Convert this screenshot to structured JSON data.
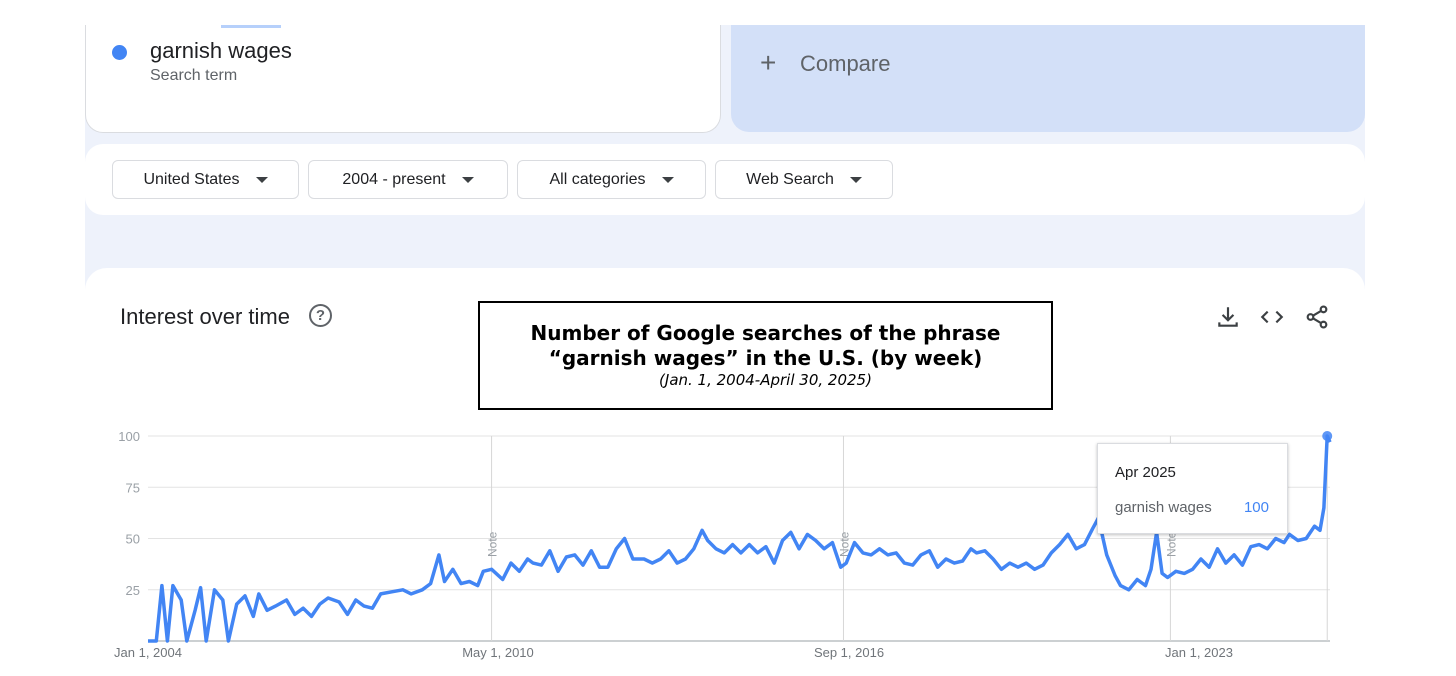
{
  "search_term": {
    "name": "garnish wages",
    "subtitle": "Search term"
  },
  "compare": {
    "plus": "+",
    "label": "Compare"
  },
  "filters": {
    "region": "United States",
    "time_range": "2004 - present",
    "category": "All categories",
    "property": "Web Search"
  },
  "chart_section": {
    "title": "Interest over time",
    "help_symbol": "?",
    "tools": [
      "download-icon",
      "embed-icon",
      "share-icon"
    ]
  },
  "annotation": {
    "title": "Number of Google searches of the phrase “garnish wages” in the U.S. (by week)",
    "subtitle": "(Jan. 1, 2004-April 30,  2025)"
  },
  "tooltip": {
    "date": "Apr 2025",
    "series": "garnish wages",
    "value": "100"
  },
  "colors": {
    "line": "#4285f4",
    "compare_bg": "#d3e0f8",
    "page_bg": "#eef2fb"
  },
  "chart_data": {
    "type": "line",
    "title": "",
    "xlabel": "",
    "ylabel": "",
    "ylim": [
      0,
      100
    ],
    "y_ticks": [
      "25",
      "50",
      "75",
      "100"
    ],
    "x_tick_labels": [
      "Jan 1, 2004",
      "May 1, 2010",
      "Sep 1, 2016",
      "Jan 1, 2023"
    ],
    "x_range": [
      2004.0,
      2025.33
    ],
    "notes": [
      {
        "x": 2010.2,
        "label": "Note"
      },
      {
        "x": 2016.55,
        "label": "Note"
      },
      {
        "x": 2022.45,
        "label": "Note"
      }
    ],
    "series": [
      {
        "name": "garnish wages",
        "points": [
          [
            2004.0,
            0
          ],
          [
            2004.15,
            0
          ],
          [
            2004.25,
            27
          ],
          [
            2004.35,
            0
          ],
          [
            2004.45,
            27
          ],
          [
            2004.6,
            20
          ],
          [
            2004.7,
            0
          ],
          [
            2004.85,
            15
          ],
          [
            2004.95,
            26
          ],
          [
            2005.05,
            0
          ],
          [
            2005.2,
            25
          ],
          [
            2005.35,
            20
          ],
          [
            2005.45,
            0
          ],
          [
            2005.6,
            18
          ],
          [
            2005.75,
            22
          ],
          [
            2005.9,
            12
          ],
          [
            2006.0,
            23
          ],
          [
            2006.15,
            15
          ],
          [
            2006.3,
            17
          ],
          [
            2006.5,
            20
          ],
          [
            2006.65,
            13
          ],
          [
            2006.8,
            16
          ],
          [
            2006.95,
            12
          ],
          [
            2007.1,
            18
          ],
          [
            2007.25,
            21
          ],
          [
            2007.45,
            19
          ],
          [
            2007.6,
            13
          ],
          [
            2007.75,
            20
          ],
          [
            2007.9,
            17
          ],
          [
            2008.05,
            16
          ],
          [
            2008.2,
            23
          ],
          [
            2008.4,
            24
          ],
          [
            2008.6,
            25
          ],
          [
            2008.75,
            23
          ],
          [
            2008.95,
            25
          ],
          [
            2009.1,
            28
          ],
          [
            2009.25,
            42
          ],
          [
            2009.35,
            29
          ],
          [
            2009.5,
            35
          ],
          [
            2009.65,
            28
          ],
          [
            2009.8,
            29
          ],
          [
            2009.95,
            27
          ],
          [
            2010.05,
            34
          ],
          [
            2010.2,
            35
          ],
          [
            2010.4,
            30
          ],
          [
            2010.55,
            38
          ],
          [
            2010.7,
            34
          ],
          [
            2010.85,
            40
          ],
          [
            2010.95,
            38
          ],
          [
            2011.1,
            37
          ],
          [
            2011.25,
            44
          ],
          [
            2011.4,
            34
          ],
          [
            2011.55,
            41
          ],
          [
            2011.7,
            42
          ],
          [
            2011.85,
            37
          ],
          [
            2012.0,
            44
          ],
          [
            2012.15,
            36
          ],
          [
            2012.3,
            36
          ],
          [
            2012.45,
            45
          ],
          [
            2012.6,
            50
          ],
          [
            2012.75,
            40
          ],
          [
            2012.95,
            40
          ],
          [
            2013.1,
            38
          ],
          [
            2013.25,
            40
          ],
          [
            2013.4,
            44
          ],
          [
            2013.55,
            38
          ],
          [
            2013.7,
            40
          ],
          [
            2013.85,
            45
          ],
          [
            2014.0,
            54
          ],
          [
            2014.1,
            49
          ],
          [
            2014.25,
            45
          ],
          [
            2014.4,
            43
          ],
          [
            2014.55,
            47
          ],
          [
            2014.7,
            43
          ],
          [
            2014.85,
            47
          ],
          [
            2015.0,
            43
          ],
          [
            2015.15,
            46
          ],
          [
            2015.3,
            38
          ],
          [
            2015.45,
            49
          ],
          [
            2015.6,
            53
          ],
          [
            2015.75,
            45
          ],
          [
            2015.9,
            52
          ],
          [
            2016.05,
            49
          ],
          [
            2016.2,
            45
          ],
          [
            2016.35,
            48
          ],
          [
            2016.5,
            36
          ],
          [
            2016.6,
            38
          ],
          [
            2016.75,
            48
          ],
          [
            2016.9,
            43
          ],
          [
            2017.05,
            42
          ],
          [
            2017.2,
            45
          ],
          [
            2017.35,
            42
          ],
          [
            2017.5,
            43
          ],
          [
            2017.65,
            38
          ],
          [
            2017.8,
            37
          ],
          [
            2017.95,
            42
          ],
          [
            2018.1,
            44
          ],
          [
            2018.25,
            36
          ],
          [
            2018.4,
            40
          ],
          [
            2018.55,
            38
          ],
          [
            2018.7,
            39
          ],
          [
            2018.85,
            45
          ],
          [
            2018.95,
            43
          ],
          [
            2019.1,
            44
          ],
          [
            2019.25,
            40
          ],
          [
            2019.4,
            35
          ],
          [
            2019.55,
            38
          ],
          [
            2019.7,
            36
          ],
          [
            2019.85,
            38
          ],
          [
            2020.0,
            35
          ],
          [
            2020.15,
            37
          ],
          [
            2020.3,
            43
          ],
          [
            2020.45,
            47
          ],
          [
            2020.6,
            52
          ],
          [
            2020.75,
            45
          ],
          [
            2020.9,
            47
          ],
          [
            2021.05,
            55
          ],
          [
            2021.15,
            60
          ],
          [
            2021.3,
            42
          ],
          [
            2021.45,
            32
          ],
          [
            2021.55,
            27
          ],
          [
            2021.7,
            25
          ],
          [
            2021.85,
            30
          ],
          [
            2022.0,
            27
          ],
          [
            2022.1,
            35
          ],
          [
            2022.2,
            53
          ],
          [
            2022.3,
            33
          ],
          [
            2022.4,
            31
          ],
          [
            2022.55,
            34
          ],
          [
            2022.7,
            33
          ],
          [
            2022.85,
            35
          ],
          [
            2023.0,
            40
          ],
          [
            2023.15,
            36
          ],
          [
            2023.3,
            45
          ],
          [
            2023.45,
            38
          ],
          [
            2023.6,
            42
          ],
          [
            2023.75,
            37
          ],
          [
            2023.9,
            46
          ],
          [
            2024.05,
            47
          ],
          [
            2024.2,
            45
          ],
          [
            2024.35,
            50
          ],
          [
            2024.5,
            48
          ],
          [
            2024.6,
            52
          ],
          [
            2024.75,
            49
          ],
          [
            2024.9,
            50
          ],
          [
            2025.05,
            56
          ],
          [
            2025.15,
            54
          ],
          [
            2025.22,
            65
          ],
          [
            2025.28,
            100
          ],
          [
            2025.33,
            97
          ]
        ]
      }
    ]
  }
}
